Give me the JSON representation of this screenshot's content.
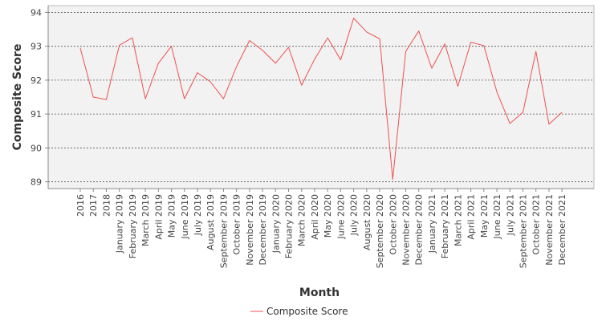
{
  "chart_data": {
    "type": "line",
    "title": "",
    "xlabel": "Month",
    "ylabel": "Composite Score",
    "ylim": [
      88.8,
      94.2
    ],
    "yticks": [
      89,
      90,
      91,
      92,
      93,
      94
    ],
    "grid": true,
    "legend_position": "bottom-center",
    "categories": [
      "2016",
      "2017",
      "2018",
      "January 2019",
      "February 2019",
      "March 2019",
      "April 2019",
      "May 2019",
      "June 2019",
      "July 2019",
      "August 2019",
      "September 2019",
      "October 2019",
      "November 2019",
      "December 2019",
      "January 2020",
      "February 2020",
      "March 2020",
      "April 2020",
      "May 2020",
      "June 2020",
      "July 2020",
      "August 2020",
      "September 2020",
      "October 2020",
      "November 2020",
      "December 2020",
      "January 2021",
      "February 2021",
      "March 2021",
      "April 2021",
      "May 2021",
      "June 2021",
      "July 2021",
      "September 2021",
      "October 2021",
      "November 2021",
      "December 2021"
    ],
    "series": [
      {
        "name": "Composite Score",
        "color": "#f05050",
        "values": [
          92.95,
          91.5,
          91.43,
          93.03,
          93.25,
          91.45,
          92.5,
          93.0,
          91.45,
          92.22,
          91.95,
          91.45,
          92.4,
          93.17,
          92.88,
          92.5,
          92.97,
          91.85,
          92.62,
          93.25,
          92.6,
          93.83,
          93.42,
          93.22,
          89.07,
          92.85,
          93.45,
          92.35,
          93.07,
          91.82,
          93.12,
          93.02,
          91.65,
          90.72,
          91.05,
          92.85,
          90.7,
          91.05
        ]
      }
    ]
  }
}
